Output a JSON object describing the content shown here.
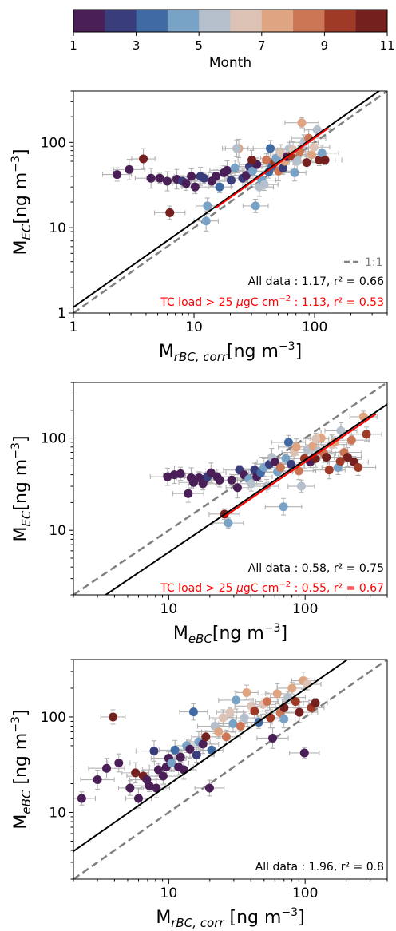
{
  "colorbar": {
    "label": "Month",
    "min": 1,
    "max": 11,
    "tick_labels": [
      "1",
      "3",
      "5",
      "7",
      "9",
      "11"
    ],
    "colors": [
      "#4a1f57",
      "#3a3d7b",
      "#3f6aa3",
      "#78a3c6",
      "#b6c0cc",
      "#dcc3b6",
      "#dfa481",
      "#cc7655",
      "#9e3a26",
      "#73201e"
    ]
  },
  "chart_data": [
    {
      "type": "scatter",
      "xlabel_main": "M",
      "xlabel_sub": "rBC, corr",
      "xlabel_unit": "[ng m",
      "ylabel_main": "M",
      "ylabel_sub": "EC",
      "ylabel_unit": "[ng m",
      "xscale": "log",
      "yscale": "log",
      "xlim": [
        1,
        400
      ],
      "ylim": [
        1,
        400
      ],
      "xticks": [
        "1",
        "10",
        "100"
      ],
      "yticks": [
        "1",
        "10",
        "100"
      ],
      "legend": {
        "label": "1:1",
        "placement": "bottom-right"
      },
      "annotations": {
        "all": "All data : 1.17, r² = 0.66",
        "tc_prefix": "TC load > 25 ",
        "tc_unit": "μ",
        "tc_mid": "gC cm",
        "tc_exp": "−2",
        "tc_suffix": " : 1.13, r² = 0.53"
      },
      "fit_all_slope": 1.17,
      "fit_tc_slope": 1.13,
      "fit_tc_range": [
        15,
        130
      ],
      "points": [
        [
          2.3,
          42,
          1
        ],
        [
          2.9,
          48,
          1
        ],
        [
          3.8,
          64,
          10
        ],
        [
          4.4,
          38,
          1
        ],
        [
          5.2,
          38,
          1
        ],
        [
          6.0,
          35,
          1
        ],
        [
          6.3,
          15,
          10
        ],
        [
          7.2,
          37,
          1
        ],
        [
          8.0,
          35,
          2
        ],
        [
          8.6,
          33,
          1
        ],
        [
          9.5,
          40,
          1
        ],
        [
          10.2,
          30,
          1
        ],
        [
          11.3,
          40,
          2
        ],
        [
          12.1,
          38,
          2
        ],
        [
          12.6,
          12,
          4
        ],
        [
          14.0,
          35,
          1
        ],
        [
          15.2,
          40,
          1
        ],
        [
          16.3,
          30,
          3
        ],
        [
          17.7,
          44,
          1
        ],
        [
          18.8,
          47,
          1
        ],
        [
          20.3,
          36,
          2
        ],
        [
          21.8,
          50,
          4
        ],
        [
          23.5,
          85,
          7
        ],
        [
          25.3,
          38,
          2
        ],
        [
          27.1,
          41,
          1
        ],
        [
          28.8,
          52,
          2
        ],
        [
          30.6,
          46,
          4
        ],
        [
          32.4,
          18,
          4
        ],
        [
          33.2,
          55,
          1
        ],
        [
          34.8,
          30,
          5
        ],
        [
          36.5,
          36,
          4
        ],
        [
          38.3,
          32,
          5
        ],
        [
          39.8,
          62,
          8
        ],
        [
          41.7,
          45,
          3
        ],
        [
          42.9,
          85,
          3
        ],
        [
          44.3,
          52,
          3
        ],
        [
          46.4,
          58,
          9
        ],
        [
          48.1,
          65,
          4
        ],
        [
          50.2,
          46,
          8
        ],
        [
          52.5,
          75,
          6
        ],
        [
          54.7,
          50,
          2
        ],
        [
          56.6,
          60,
          7
        ],
        [
          58.9,
          68,
          1
        ],
        [
          61.7,
          85,
          5
        ],
        [
          64.0,
          70,
          9
        ],
        [
          66.2,
          82,
          6
        ],
        [
          68.3,
          44,
          4
        ],
        [
          71.6,
          60,
          5
        ],
        [
          75.1,
          78,
          8
        ],
        [
          78.3,
          170,
          7
        ],
        [
          81.4,
          100,
          5
        ],
        [
          86.0,
          58,
          10
        ],
        [
          89.2,
          112,
          8
        ],
        [
          94.6,
          72,
          7
        ],
        [
          98.8,
          88,
          6
        ],
        [
          105.0,
          140,
          5
        ],
        [
          109.0,
          62,
          10
        ],
        [
          115.0,
          75,
          4
        ],
        [
          122.0,
          62,
          11
        ],
        [
          12.9,
          18,
          4
        ],
        [
          22.6,
          85,
          5
        ],
        [
          30.2,
          62,
          11
        ]
      ]
    },
    {
      "type": "scatter",
      "xlabel_main": "M",
      "xlabel_sub": "eBC",
      "xlabel_unit": "[ng m",
      "ylabel_main": "M",
      "ylabel_sub": "EC",
      "ylabel_unit": "[ng m",
      "xscale": "log",
      "yscale": "log",
      "xlim": [
        2,
        400
      ],
      "ylim": [
        2,
        400
      ],
      "xticks": [
        "10",
        "100"
      ],
      "yticks": [
        "10",
        "100"
      ],
      "annotations": {
        "all": "All data : 0.58, r² = 0.75",
        "tc_prefix": "TC load > 25 ",
        "tc_unit": "μ",
        "tc_mid": "gC cm",
        "tc_exp": "−2",
        "tc_suffix": " : 0.55, r² = 0.67"
      },
      "fit_all_slope": 0.58,
      "fit_tc_slope": 0.55,
      "fit_tc_range": [
        25,
        330
      ],
      "points": [
        [
          9.8,
          38,
          1
        ],
        [
          11.0,
          40,
          1
        ],
        [
          12.2,
          41,
          1
        ],
        [
          13.9,
          25,
          1
        ],
        [
          14.6,
          37,
          1
        ],
        [
          15.2,
          33,
          1
        ],
        [
          16.7,
          37,
          1
        ],
        [
          17.8,
          32,
          1
        ],
        [
          18.5,
          36,
          1
        ],
        [
          19.2,
          38,
          2
        ],
        [
          20.4,
          42,
          1
        ],
        [
          22.6,
          38,
          1
        ],
        [
          23.6,
          35,
          1
        ],
        [
          25.6,
          15,
          10
        ],
        [
          27.3,
          12,
          4
        ],
        [
          28.9,
          35,
          1
        ],
        [
          31.9,
          29,
          1
        ],
        [
          33.0,
          45,
          2
        ],
        [
          35.6,
          40,
          1
        ],
        [
          38.7,
          36,
          4
        ],
        [
          40.3,
          32,
          5
        ],
        [
          42.6,
          45,
          2
        ],
        [
          44.2,
          38,
          1
        ],
        [
          47.3,
          42,
          3
        ],
        [
          50.0,
          48,
          4
        ],
        [
          52.4,
          30,
          5
        ],
        [
          54.7,
          52,
          2
        ],
        [
          57.0,
          62,
          5
        ],
        [
          60.2,
          55,
          1
        ],
        [
          62.7,
          43,
          4
        ],
        [
          66.1,
          48,
          8
        ],
        [
          69.4,
          18,
          4
        ],
        [
          72.2,
          60,
          4
        ],
        [
          75.6,
          90,
          3
        ],
        [
          79.0,
          52,
          2
        ],
        [
          82.7,
          70,
          6
        ],
        [
          86.2,
          80,
          7
        ],
        [
          89.9,
          44,
          8
        ],
        [
          93.8,
          30,
          5
        ],
        [
          98.9,
          60,
          9
        ],
        [
          104.0,
          75,
          5
        ],
        [
          109.0,
          55,
          1
        ],
        [
          114.0,
          82,
          7
        ],
        [
          119.0,
          60,
          10
        ],
        [
          125.0,
          72,
          5
        ],
        [
          131.0,
          100,
          7
        ],
        [
          137.0,
          68,
          8
        ],
        [
          143.0,
          62,
          11
        ],
        [
          150.0,
          45,
          9
        ],
        [
          157.0,
          85,
          6
        ],
        [
          165.0,
          90,
          7
        ],
        [
          174.0,
          48,
          4
        ],
        [
          183.0,
          120,
          5
        ],
        [
          193.0,
          70,
          8
        ],
        [
          205.0,
          62,
          10
        ],
        [
          219.0,
          95,
          8
        ],
        [
          228.0,
          55,
          10
        ],
        [
          245.0,
          48,
          9
        ],
        [
          268.0,
          170,
          7
        ],
        [
          282.0,
          110,
          9
        ],
        [
          181.0,
          56,
          9
        ],
        [
          120.0,
          98,
          6
        ]
      ]
    },
    {
      "type": "scatter",
      "xlabel_main": "M",
      "xlabel_sub": "rBC, corr",
      "xlabel_unit": " [ng m",
      "ylabel_main": "M",
      "ylabel_sub": "eBC",
      "ylabel_unit": " [ng m",
      "xscale": "log",
      "yscale": "log",
      "xlim": [
        2,
        400
      ],
      "ylim": [
        2,
        400
      ],
      "xticks": [
        "10",
        "100"
      ],
      "yticks": [
        "10",
        "100"
      ],
      "annotations": {
        "all": "All data : 1.96, r² = 0.8"
      },
      "fit_all_slope": 1.96,
      "points": [
        [
          2.3,
          14,
          1
        ],
        [
          3.0,
          22,
          1
        ],
        [
          3.5,
          29,
          1
        ],
        [
          3.9,
          100,
          10
        ],
        [
          4.3,
          33,
          1
        ],
        [
          5.2,
          18,
          1
        ],
        [
          5.7,
          26,
          10
        ],
        [
          6.0,
          14,
          1
        ],
        [
          6.5,
          24,
          10
        ],
        [
          6.9,
          22,
          1
        ],
        [
          7.2,
          19,
          1
        ],
        [
          7.8,
          44,
          2
        ],
        [
          8.1,
          18,
          1
        ],
        [
          8.4,
          28,
          1
        ],
        [
          9.1,
          24,
          1
        ],
        [
          9.6,
          30,
          1
        ],
        [
          10.0,
          37,
          1
        ],
        [
          10.5,
          33,
          4
        ],
        [
          11.1,
          45,
          3
        ],
        [
          11.8,
          30,
          1
        ],
        [
          12.2,
          38,
          1
        ],
        [
          12.9,
          28,
          1
        ],
        [
          13.5,
          50,
          4
        ],
        [
          14.3,
          46,
          1
        ],
        [
          15.2,
          113,
          3
        ],
        [
          16.0,
          40,
          2
        ],
        [
          16.6,
          55,
          4
        ],
        [
          17.8,
          52,
          1
        ],
        [
          18.7,
          62,
          10
        ],
        [
          19.9,
          18,
          1
        ],
        [
          20.6,
          45,
          3
        ],
        [
          21.8,
          80,
          5
        ],
        [
          23.2,
          70,
          7
        ],
        [
          25.0,
          98,
          6
        ],
        [
          26.4,
          62,
          8
        ],
        [
          28.1,
          112,
          6
        ],
        [
          29.6,
          85,
          4
        ],
        [
          31.1,
          150,
          4
        ],
        [
          33.6,
          80,
          8
        ],
        [
          35.9,
          98,
          5
        ],
        [
          37.3,
          180,
          7
        ],
        [
          40.2,
          130,
          6
        ],
        [
          42.6,
          115,
          9
        ],
        [
          45.7,
          88,
          3
        ],
        [
          49.1,
          135,
          6
        ],
        [
          52.6,
          145,
          8
        ],
        [
          55.7,
          98,
          9
        ],
        [
          57.8,
          60,
          1
        ],
        [
          62.5,
          175,
          7
        ],
        [
          65.9,
          110,
          8
        ],
        [
          70.2,
          125,
          10
        ],
        [
          74.7,
          160,
          5
        ],
        [
          80.1,
          200,
          7
        ],
        [
          85.1,
          145,
          9
        ],
        [
          90.7,
          112,
          10
        ],
        [
          96.9,
          240,
          7
        ],
        [
          104.0,
          220,
          6
        ],
        [
          111.0,
          125,
          9
        ],
        [
          119.0,
          140,
          11
        ],
        [
          98.8,
          42,
          1
        ],
        [
          70.0,
          95,
          4
        ]
      ]
    }
  ]
}
